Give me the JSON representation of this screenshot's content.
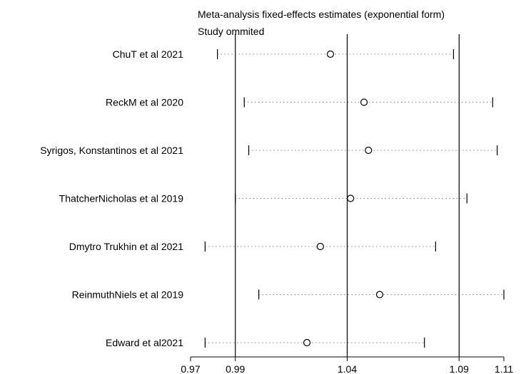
{
  "chart_data": {
    "type": "forest",
    "title": "Meta-analysis fixed-effects estimates (exponential form)",
    "subtitle": "Study ommited",
    "xlabel": "",
    "ylabel": "",
    "xlim": [
      0.97,
      1.11
    ],
    "x_ticks": [
      "0.97",
      "0.99",
      "1.04",
      "1.09",
      "1.11"
    ],
    "reference_lines": [
      0.99,
      1.04,
      1.09
    ],
    "studies": [
      {
        "label": "ChuT et al 2021",
        "estimate": 1.0325,
        "ci_lower": 0.982,
        "ci_upper": 1.0875
      },
      {
        "label": "ReckM et al 2020",
        "estimate": 1.0475,
        "ci_lower": 0.994,
        "ci_upper": 1.105
      },
      {
        "label": "Syrigos, Konstantinos et al 2021",
        "estimate": 1.0495,
        "ci_lower": 0.996,
        "ci_upper": 1.107
      },
      {
        "label": "ThatcherNicholas et al 2019",
        "estimate": 1.0415,
        "ci_lower": 0.99,
        "ci_upper": 1.0935
      },
      {
        "label": "Dmytro Trukhin et al 2021",
        "estimate": 1.028,
        "ci_lower": 0.9765,
        "ci_upper": 1.0795
      },
      {
        "label": "ReinmuthNiels et al  2019",
        "estimate": 1.0545,
        "ci_lower": 1.0005,
        "ci_upper": 1.11
      },
      {
        "label": "Edward et al2021",
        "estimate": 1.022,
        "ci_lower": 0.9765,
        "ci_upper": 1.0745
      }
    ]
  }
}
